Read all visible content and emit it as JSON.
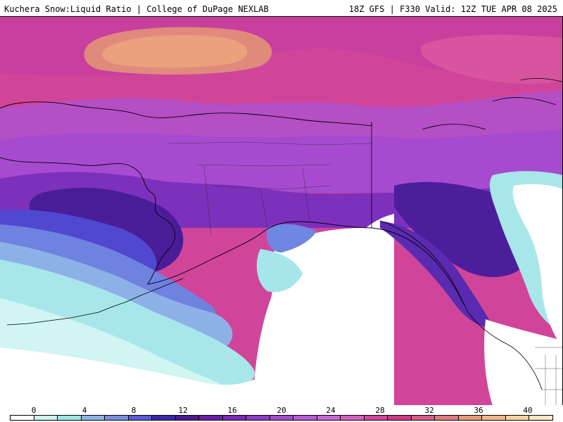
{
  "header": {
    "title_left": "Kuchera Snow:Liquid Ratio | College of DuPage NEXLAB",
    "title_right": "18Z GFS | F330 Valid: 12Z TUE APR 08 2025"
  },
  "legend": {
    "ticks": [
      "0",
      "4",
      "8",
      "12",
      "16",
      "20",
      "24",
      "28",
      "32",
      "36",
      "40"
    ],
    "colors": [
      "#ffffff",
      "#cdf3f3",
      "#9ee6e6",
      "#8fb4e6",
      "#7a8fe0",
      "#5a5ad8",
      "#3b2aa8",
      "#4d1a94",
      "#6a1fa8",
      "#7d2ab8",
      "#8e3cc6",
      "#a24dcf",
      "#b65ad6",
      "#c868d6",
      "#d55fc0",
      "#d4479e",
      "#cc3a86",
      "#d65e84",
      "#e07c7c",
      "#ea9a7a",
      "#f2b88a",
      "#f7d3a4",
      "#fbe6c4"
    ]
  },
  "map": {
    "colors": {
      "white": "#ffffff",
      "cyan_light": "#cff5f3",
      "cyan": "#a5e8ea",
      "blue_light": "#8fb2e8",
      "blue": "#6b7fe0",
      "indigo": "#4a3bc8",
      "deep_purple": "#3a1a92",
      "purple": "#6a22b0",
      "violet": "#8a3cc8",
      "orchid": "#a952d2",
      "magenta": "#c44cb8",
      "pink": "#d2418f",
      "salmon": "#e18a7a"
    }
  }
}
